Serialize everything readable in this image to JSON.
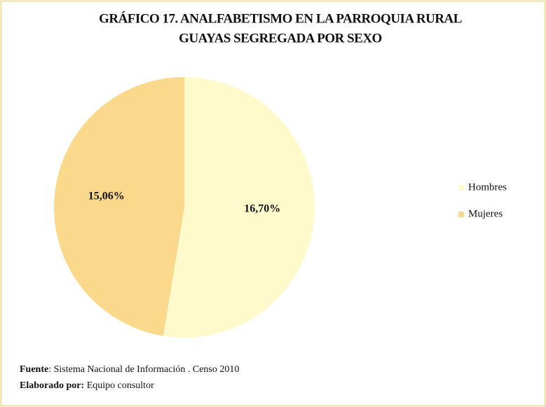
{
  "chart_data": {
    "type": "pie",
    "title": [
      "GRÁFICO 17. ANALFABETISMO EN LA PARROQUIA RURAL",
      "GUAYAS SEGREGADA POR SEXO"
    ],
    "categories": [
      "Hombres",
      "Mujeres"
    ],
    "values": [
      16.7,
      15.06
    ],
    "value_labels": [
      "16,70%",
      "15,06%"
    ],
    "colors": [
      "#fffacb",
      "#fad98c"
    ],
    "legend": "right"
  },
  "footer": {
    "source": {
      "label": "Fuente",
      "text": ": Sistema Nacional de Información . Censo 2010"
    },
    "author": {
      "label": "Elaborado por:",
      "text": " Equipo consultor"
    }
  }
}
